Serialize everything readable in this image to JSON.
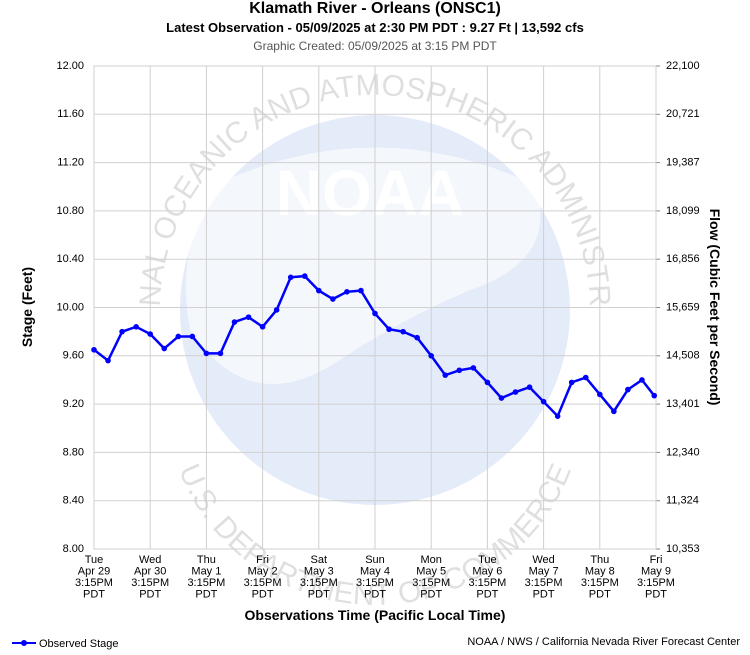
{
  "chart_data": {
    "type": "line",
    "title": "Klamath River - Orleans (ONSC1)",
    "subtitle": "Latest Observation - 05/09/2025 at 2:30 PM PDT : 9.27 Ft | 13,592 cfs",
    "created": "Graphic Created: 05/09/2025 at 3:15 PM PDT",
    "x_label": "Observations Time (Pacific Local Time)",
    "y_label": "Stage (Feet)",
    "y2_label": "Flow (Cubic Feet per Second)",
    "x": [
      "04/29 15:15",
      "04/29 21:15",
      "04/30 03:15",
      "04/30 09:15",
      "04/30 15:15",
      "04/30 21:15",
      "05/01 03:15",
      "05/01 09:15",
      "05/01 15:15",
      "05/01 21:15",
      "05/02 03:15",
      "05/02 09:15",
      "05/02 15:15",
      "05/02 21:15",
      "05/03 03:15",
      "05/03 09:15",
      "05/03 15:15",
      "05/03 21:15",
      "05/04 03:15",
      "05/04 09:15",
      "05/04 15:15",
      "05/04 21:15",
      "05/05 03:15",
      "05/05 09:15",
      "05/05 15:15",
      "05/05 21:15",
      "05/06 03:15",
      "05/06 09:15",
      "05/06 15:15",
      "05/06 21:15",
      "05/07 03:15",
      "05/07 09:15",
      "05/07 15:15",
      "05/07 21:15",
      "05/08 03:15",
      "05/08 09:15",
      "05/08 15:15",
      "05/08 21:15",
      "05/09 03:15",
      "05/09 09:15",
      "05/09 14:30"
    ],
    "series": [
      {
        "name": "Observed Stage",
        "color": "#0000ff",
        "values": [
          9.65,
          9.56,
          9.8,
          9.84,
          9.78,
          9.66,
          9.76,
          9.76,
          9.62,
          9.62,
          9.88,
          9.92,
          9.84,
          9.98,
          10.25,
          10.26,
          10.14,
          10.07,
          10.13,
          10.14,
          9.95,
          9.82,
          9.8,
          9.75,
          9.6,
          9.44,
          9.48,
          9.5,
          9.38,
          9.25,
          9.3,
          9.34,
          9.22,
          9.1,
          9.38,
          9.42,
          9.28,
          9.14,
          9.32,
          9.4,
          9.27
        ]
      }
    ],
    "xlim": [
      "04/29 15:15",
      "05/09 15:15"
    ],
    "xticks": [
      {
        "value": "04/29 15:15",
        "label": "Tue\nApr 29\n3:15PM\nPDT"
      },
      {
        "value": "04/30 15:15",
        "label": "Wed\nApr 30\n3:15PM\nPDT"
      },
      {
        "value": "05/01 15:15",
        "label": "Thu\nMay 1\n3:15PM\nPDT"
      },
      {
        "value": "05/02 15:15",
        "label": "Fri\nMay 2\n3:15PM\nPDT"
      },
      {
        "value": "05/03 15:15",
        "label": "Sat\nMay 3\n3:15PM\nPDT"
      },
      {
        "value": "05/04 15:15",
        "label": "Sun\nMay 4\n3:15PM\nPDT"
      },
      {
        "value": "05/05 15:15",
        "label": "Mon\nMay 5\n3:15PM\nPDT"
      },
      {
        "value": "05/06 15:15",
        "label": "Tue\nMay 6\n3:15PM\nPDT"
      },
      {
        "value": "05/07 15:15",
        "label": "Wed\nMay 7\n3:15PM\nPDT"
      },
      {
        "value": "05/08 15:15",
        "label": "Thu\nMay 8\n3:15PM\nPDT"
      },
      {
        "value": "05/09 15:15",
        "label": "Fri\nMay 9\n3:15PM\nPDT"
      }
    ],
    "ylim": [
      8,
      12
    ],
    "yticks": [
      {
        "value": 8,
        "label": "8.00"
      },
      {
        "value": 8.4,
        "label": "8.40"
      },
      {
        "value": 8.8,
        "label": "8.80"
      },
      {
        "value": 9.2,
        "label": "9.20"
      },
      {
        "value": 9.6,
        "label": "9.60"
      },
      {
        "value": 10,
        "label": "10.00"
      },
      {
        "value": 10.4,
        "label": "10.40"
      },
      {
        "value": 10.8,
        "label": "10.80"
      },
      {
        "value": 11.2,
        "label": "11.20"
      },
      {
        "value": 11.6,
        "label": "11.60"
      },
      {
        "value": 12,
        "label": "12.00"
      }
    ],
    "y2lim": [
      10353,
      22100
    ],
    "y2ticks": [
      {
        "value": 10353,
        "label": "10,353"
      },
      {
        "value": 11324,
        "label": "11,324"
      },
      {
        "value": 12340,
        "label": "12,340"
      },
      {
        "value": 13401,
        "label": "13,401"
      },
      {
        "value": 14508,
        "label": "14,508"
      },
      {
        "value": 15659,
        "label": "15,659"
      },
      {
        "value": 16856,
        "label": "16,856"
      },
      {
        "value": 18099,
        "label": "18,099"
      },
      {
        "value": 19387,
        "label": "19,387"
      },
      {
        "value": 20721,
        "label": "20,721"
      },
      {
        "value": 22100,
        "label": "22,100"
      }
    ],
    "grid": true,
    "legend": "bottom-left",
    "source": "NOAA / NWS / California Nevada River Forecast Center",
    "watermark": {
      "logo": "NOAA",
      "top": "NATIONAL OCEANIC AND ATMOSPHERIC ADMINISTRATION",
      "bottom": "U.S. DEPARTMENT OF COMMERCE"
    }
  }
}
